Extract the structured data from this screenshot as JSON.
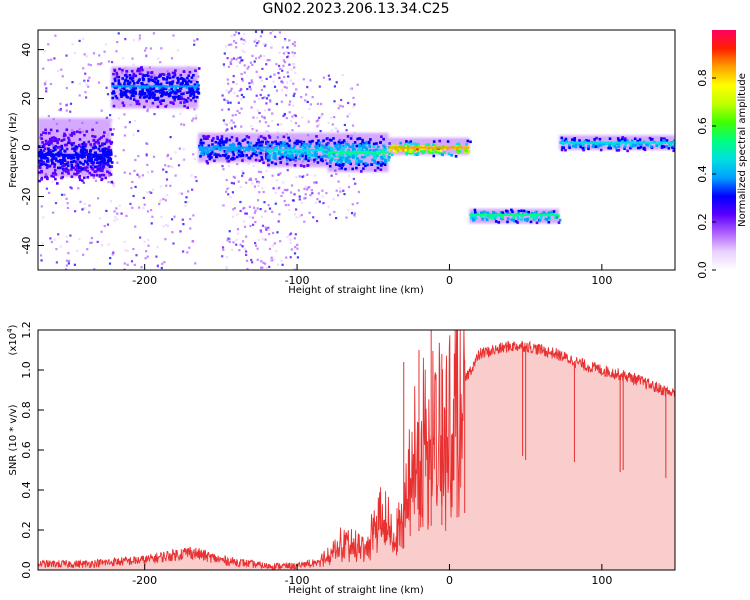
{
  "title": "GN02.2023.206.13.34.C25",
  "chart_data": [
    {
      "type": "heatmap",
      "xlabel": "Height of straight line (km)",
      "ylabel": "Frequency (Hz)",
      "xlim": [
        -270,
        148
      ],
      "ylim": [
        -50,
        48
      ],
      "xticks": [
        -200,
        -100,
        0,
        100
      ],
      "yticks": [
        -40,
        -20,
        0,
        20,
        40
      ],
      "colorbar": {
        "label": "Normalized spectral amplitude",
        "range": [
          0.0,
          1.0
        ],
        "ticks": [
          "0.0",
          "0.2",
          "0.4",
          "0.6",
          "0.8"
        ],
        "colors": [
          "#ffffff",
          "#e8d0ff",
          "#b060ff",
          "#5a00ff",
          "#0000ff",
          "#00a0ff",
          "#00e0e0",
          "#00ff80",
          "#40ff00",
          "#c0ff00",
          "#ffff00",
          "#ffa000",
          "#ff2000",
          "#ff0060"
        ]
      },
      "segments": [
        {
          "x": [
            -270,
            -222
          ],
          "freq": [
            -12,
            12
          ],
          "center": -3,
          "level": 0.3
        },
        {
          "x": [
            -222,
            -165
          ],
          "freq": [
            16,
            33
          ],
          "center": 25,
          "level": 0.35
        },
        {
          "x": [
            -165,
            -120
          ],
          "freq": [
            -6,
            6
          ],
          "center": 0,
          "level": 0.4
        },
        {
          "x": [
            -120,
            -80
          ],
          "freq": [
            -8,
            6
          ],
          "center": -1,
          "level": 0.45
        },
        {
          "x": [
            -80,
            -40
          ],
          "freq": [
            -10,
            6
          ],
          "center": -2,
          "level": 0.5
        },
        {
          "x": [
            -40,
            13
          ],
          "freq": [
            -3,
            4
          ],
          "center": 0,
          "level": 0.85
        },
        {
          "x": [
            13,
            72
          ],
          "freq": [
            -31,
            -25
          ],
          "center": -27.5,
          "level": 0.55
        },
        {
          "x": [
            72,
            148
          ],
          "freq": [
            -1,
            5
          ],
          "center": 2,
          "level": 0.45
        }
      ],
      "scatter_bands": [
        {
          "x": [
            -270,
            -165
          ],
          "freq": [
            -50,
            48
          ],
          "density": 0.5
        },
        {
          "x": [
            -150,
            -100
          ],
          "freq": [
            -50,
            48
          ],
          "density": 0.6
        },
        {
          "x": [
            -100,
            -60
          ],
          "freq": [
            -30,
            30
          ],
          "density": 0.2
        }
      ]
    },
    {
      "type": "line",
      "xlabel": "Height of straight line (km)",
      "ylabel": "SNR (10 * v/v)",
      "ylabel_multiplier": "(x10",
      "ylabel_exponent": "4",
      "ylabel_close": ")",
      "xlim": [
        -270,
        148
      ],
      "ylim": [
        0,
        1.2
      ],
      "xticks": [
        -200,
        -100,
        0,
        100
      ],
      "yticks": [
        "0.0",
        "0.2",
        "0.4",
        "0.6",
        "0.8",
        "1.0",
        "1.2"
      ],
      "line_color": "#e83030",
      "envelope_x": [
        -270,
        -240,
        -200,
        -170,
        -150,
        -120,
        -100,
        -85,
        -70,
        -55,
        -45,
        -35,
        -25,
        -15,
        -8,
        0,
        10,
        20,
        30,
        40,
        50,
        60,
        70,
        80,
        90,
        100,
        110,
        120,
        130,
        140,
        148
      ],
      "envelope_y": [
        0.03,
        0.03,
        0.05,
        0.09,
        0.05,
        0.02,
        0.02,
        0.05,
        0.15,
        0.12,
        0.3,
        0.18,
        0.55,
        0.75,
        0.72,
        0.8,
        0.95,
        1.08,
        1.1,
        1.12,
        1.12,
        1.1,
        1.08,
        1.05,
        1.02,
        1.0,
        0.98,
        0.96,
        0.93,
        0.9,
        0.88
      ],
      "spikes": [
        {
          "x": -30,
          "y": 1.04
        },
        {
          "x": -20,
          "y": 1.1
        },
        {
          "x": -12,
          "y": 1.2
        },
        {
          "x": -5,
          "y": 1.08
        },
        {
          "x": 5,
          "y": 1.13
        },
        {
          "x": 10,
          "y": 1.05
        }
      ],
      "dips": [
        {
          "x": 48,
          "y": 0.57
        },
        {
          "x": 50,
          "y": 0.55
        },
        {
          "x": 82,
          "y": 0.54
        },
        {
          "x": 112,
          "y": 0.49
        },
        {
          "x": 114,
          "y": 0.5
        },
        {
          "x": 142,
          "y": 0.46
        }
      ]
    }
  ]
}
